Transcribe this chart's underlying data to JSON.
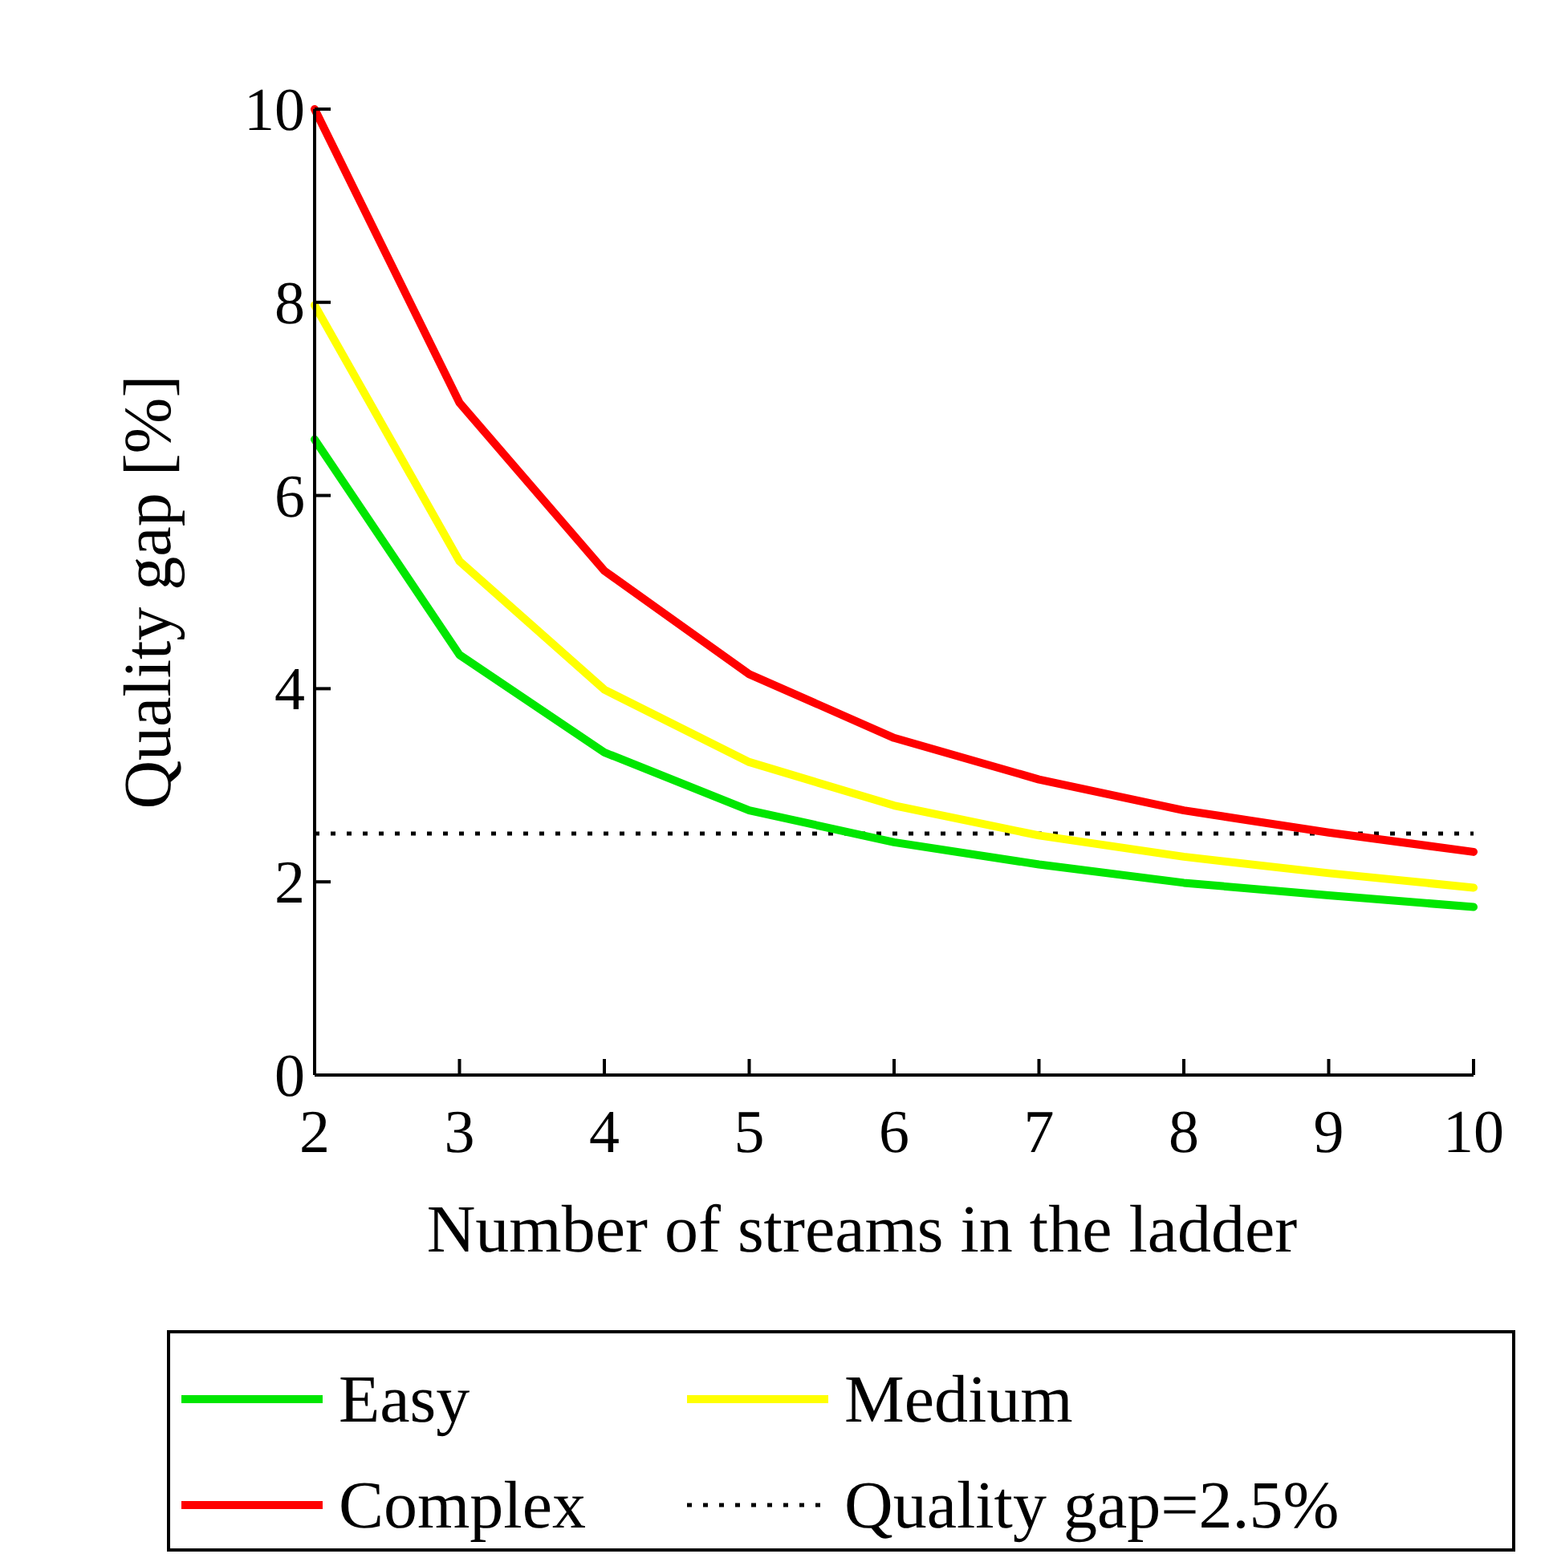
{
  "chart_data": {
    "type": "line",
    "xlabel": "Number of streams in the ladder",
    "ylabel": "Quality gap [%]",
    "x": [
      2,
      3,
      4,
      5,
      6,
      7,
      8,
      9,
      10
    ],
    "series": [
      {
        "name": "Easy",
        "color": "#00e600",
        "values": [
          6.58,
          4.35,
          3.34,
          2.74,
          2.41,
          2.18,
          1.99,
          1.86,
          1.74
        ]
      },
      {
        "name": "Medium",
        "color": "#ffff00",
        "values": [
          7.97,
          5.32,
          3.99,
          3.24,
          2.79,
          2.48,
          2.26,
          2.09,
          1.94
        ]
      },
      {
        "name": "Complex",
        "color": "#ff0000",
        "values": [
          10,
          6.96,
          5.22,
          4.15,
          3.49,
          3.06,
          2.74,
          2.51,
          2.31
        ]
      }
    ],
    "ref_lines": [
      {
        "axis": "y",
        "value": 2.5,
        "label": "Quality gap=2.5%",
        "color": "#000000",
        "line_style": "dotted"
      }
    ],
    "xlim": [
      2,
      10
    ],
    "xticks": [
      2,
      3,
      4,
      5,
      6,
      7,
      8,
      9,
      10
    ],
    "ylim": [
      0,
      10
    ],
    "yticks": [
      0,
      2,
      4,
      6,
      8,
      10
    ],
    "grid": false,
    "legend": "bottom",
    "marker": "none",
    "line_style": "solid"
  }
}
